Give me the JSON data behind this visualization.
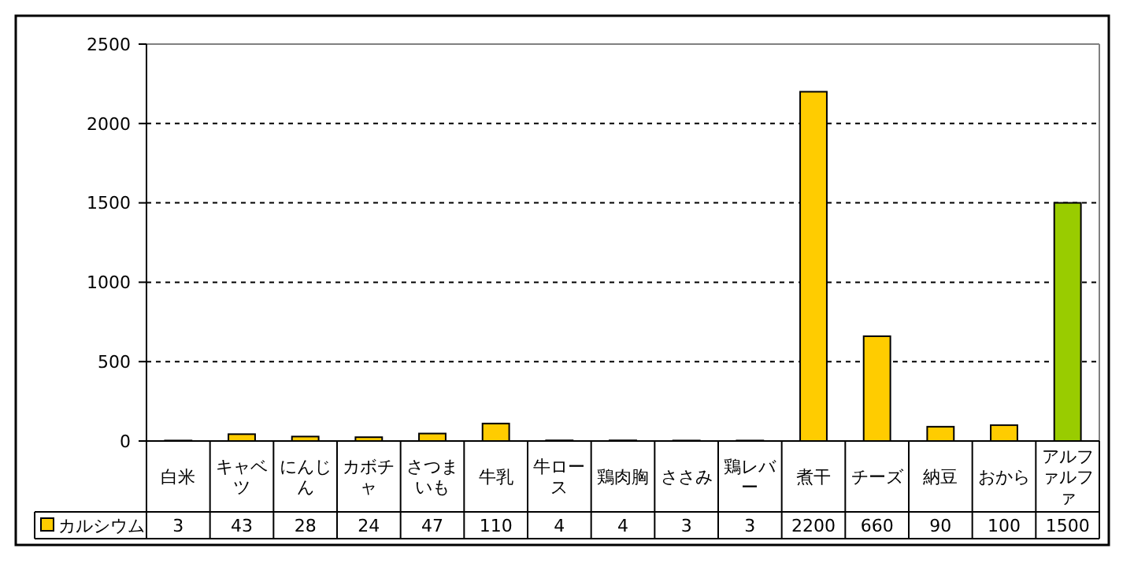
{
  "chart_data": {
    "type": "bar",
    "categories": [
      "白米",
      "キャベツ",
      "にんじん",
      "カボチャ",
      "さつまいも",
      "牛乳",
      "牛ロース",
      "鶏肉胸",
      "ささみ",
      "鶏レバー",
      "煮干",
      "チーズ",
      "納豆",
      "おから",
      "アルファルファ"
    ],
    "series": [
      {
        "name": "カルシウム",
        "color": "#ffcc00",
        "values": [
          3,
          43,
          28,
          24,
          47,
          110,
          4,
          4,
          3,
          3,
          2200,
          660,
          90,
          100,
          1500
        ],
        "colors": [
          "#ffcc00",
          "#ffcc00",
          "#ffcc00",
          "#ffcc00",
          "#ffcc00",
          "#ffcc00",
          "#ffcc00",
          "#ffcc00",
          "#ffcc00",
          "#ffcc00",
          "#ffcc00",
          "#ffcc00",
          "#ffcc00",
          "#ffcc00",
          "#99cc00"
        ]
      }
    ],
    "ylim": [
      0,
      2500
    ],
    "yticks": [
      0,
      500,
      1000,
      1500,
      2000,
      2500
    ],
    "grid": "y",
    "data_labels": true,
    "legend": "bottom left"
  }
}
